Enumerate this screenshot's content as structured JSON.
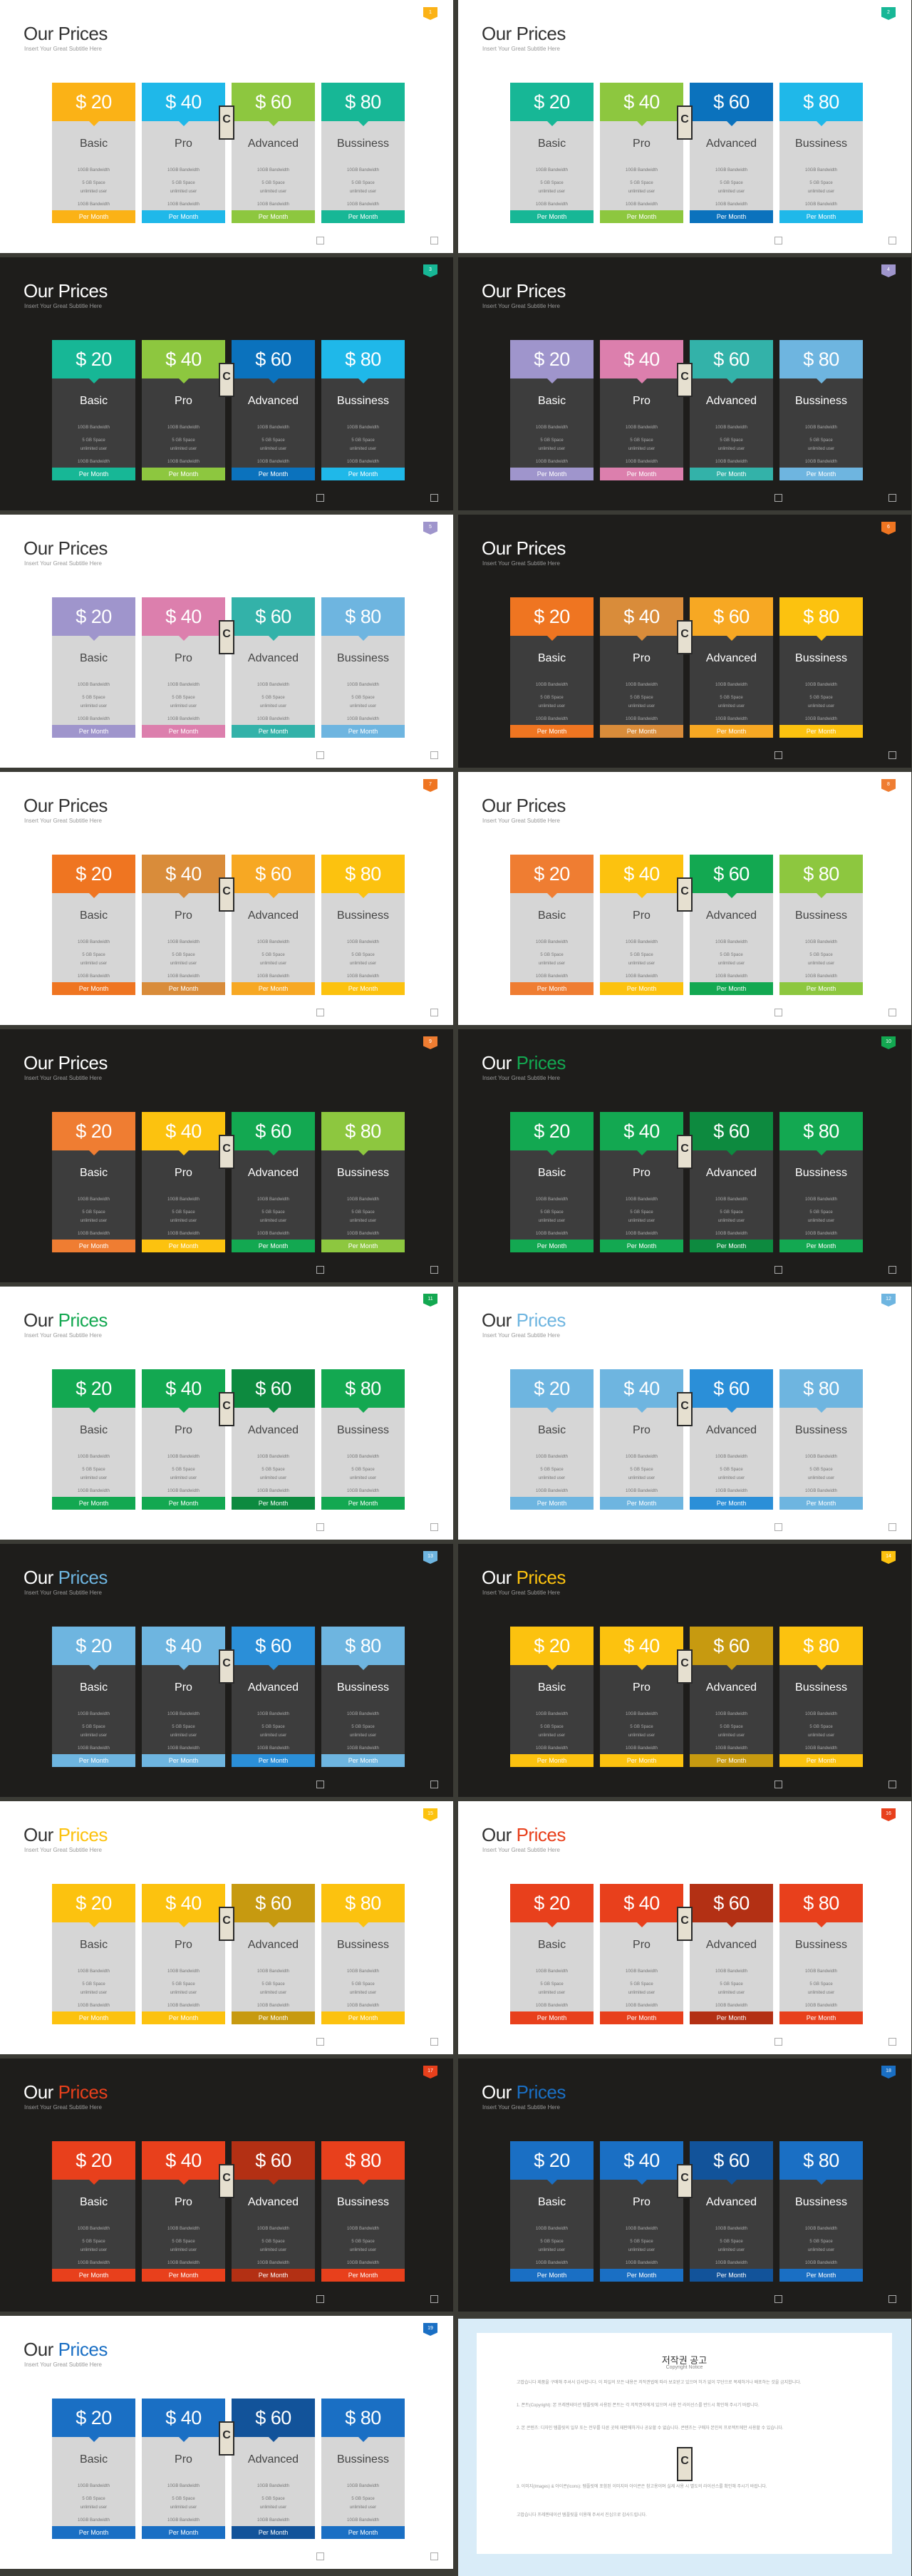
{
  "slides": [
    {
      "theme": "light",
      "title_main": "Our",
      "title_accent": "Prices",
      "accent": "#333333",
      "subtitle": "Insert Your Great Subtitle Here",
      "num": "1",
      "colors": [
        "#fbb216",
        "#1fb8e9",
        "#8dc73f",
        "#17b796"
      ]
    },
    {
      "theme": "light",
      "title_main": "Our",
      "title_accent": "Prices",
      "accent": "#333333",
      "subtitle": "Insert Your Great Subtitle Here",
      "num": "2",
      "colors": [
        "#17b796",
        "#8dc73f",
        "#0b72bd",
        "#1fb8e9"
      ]
    },
    {
      "theme": "dark",
      "title_main": "Our",
      "title_accent": "Prices",
      "accent": "#ffffff",
      "subtitle": "Insert Your Great Subtitle Here",
      "num": "3",
      "colors": [
        "#17b796",
        "#8dc73f",
        "#0b72bd",
        "#1fb8e9"
      ]
    },
    {
      "theme": "dark",
      "title_main": "Our",
      "title_accent": "Prices",
      "accent": "#ffffff",
      "subtitle": "Insert Your Great Subtitle Here",
      "num": "4",
      "colors": [
        "#9f95cc",
        "#dc7fad",
        "#33b2a9",
        "#6eb5e0"
      ]
    },
    {
      "theme": "light",
      "title_main": "Our",
      "title_accent": "Prices",
      "accent": "#333333",
      "subtitle": "Insert Your Great Subtitle Here",
      "num": "5",
      "colors": [
        "#9f95cc",
        "#dc7fad",
        "#33b2a9",
        "#6eb5e0"
      ]
    },
    {
      "theme": "dark",
      "title_main": "Our",
      "title_accent": "Prices",
      "accent": "#ffffff",
      "subtitle": "Insert Your Great Subtitle Here",
      "num": "6",
      "colors": [
        "#ef7521",
        "#d98c3a",
        "#f7a823",
        "#fcc20f"
      ]
    },
    {
      "theme": "light",
      "title_main": "Our",
      "title_accent": "Prices",
      "accent": "#333333",
      "subtitle": "Insert Your Great Subtitle Here",
      "num": "7",
      "colors": [
        "#ef7521",
        "#d98c3a",
        "#f7a823",
        "#fcc20f"
      ]
    },
    {
      "theme": "light",
      "title_main": "Our",
      "title_accent": "Prices",
      "accent": "#333333",
      "subtitle": "Insert Your Great Subtitle Here",
      "num": "8",
      "colors": [
        "#ef7d32",
        "#fcc20f",
        "#13a851",
        "#8dc73f"
      ]
    },
    {
      "theme": "dark",
      "title_main": "Our",
      "title_accent": "Prices",
      "accent": "#ffffff",
      "subtitle": "Insert Your Great Subtitle Here",
      "num": "9",
      "colors": [
        "#ef7d32",
        "#fcc20f",
        "#13a851",
        "#8dc73f"
      ]
    },
    {
      "theme": "dark",
      "title_main": "Our",
      "title_accent": "Prices",
      "accent": "#13a851",
      "subtitle": "Insert Your Great Subtitle Here",
      "num": "10",
      "colors": [
        "#13a851",
        "#13a851",
        "#0d8a3f",
        "#13a851"
      ]
    },
    {
      "theme": "light",
      "title_main": "Our",
      "title_accent": "Prices",
      "accent": "#13a851",
      "subtitle": "Insert Your Great Subtitle Here",
      "num": "11",
      "colors": [
        "#13a851",
        "#13a851",
        "#0d8a3f",
        "#13a851"
      ]
    },
    {
      "theme": "light",
      "title_main": "Our",
      "title_accent": "Prices",
      "accent": "#6eb5e0",
      "subtitle": "Insert Your Great Subtitle Here",
      "num": "12",
      "colors": [
        "#6eb5e0",
        "#6eb5e0",
        "#2b8fd8",
        "#6eb5e0"
      ]
    },
    {
      "theme": "dark",
      "title_main": "Our",
      "title_accent": "Prices",
      "accent": "#6eb5e0",
      "subtitle": "Insert Your Great Subtitle Here",
      "num": "13",
      "colors": [
        "#6eb5e0",
        "#6eb5e0",
        "#2b8fd8",
        "#6eb5e0"
      ]
    },
    {
      "theme": "dark",
      "title_main": "Our",
      "title_accent": "Prices",
      "accent": "#fcc20f",
      "subtitle": "Insert Your Great Subtitle Here",
      "num": "14",
      "colors": [
        "#fcc20f",
        "#fcc20f",
        "#c79a10",
        "#fcc20f"
      ]
    },
    {
      "theme": "light",
      "title_main": "Our",
      "title_accent": "Prices",
      "accent": "#fcc20f",
      "subtitle": "Insert Your Great Subtitle Here",
      "num": "15",
      "colors": [
        "#fcc20f",
        "#fcc20f",
        "#c79a10",
        "#fcc20f"
      ]
    },
    {
      "theme": "light",
      "title_main": "Our",
      "title_accent": "Prices",
      "accent": "#e8401c",
      "subtitle": "Insert Your Great Subtitle Here",
      "num": "16",
      "colors": [
        "#e8401c",
        "#e8401c",
        "#b33014",
        "#e8401c"
      ]
    },
    {
      "theme": "dark",
      "title_main": "Our",
      "title_accent": "Prices",
      "accent": "#e8401c",
      "subtitle": "Insert Your Great Subtitle Here",
      "num": "17",
      "colors": [
        "#e8401c",
        "#e8401c",
        "#b33014",
        "#e8401c"
      ]
    },
    {
      "theme": "dark",
      "title_main": "Our",
      "title_accent": "Prices",
      "accent": "#1a6fc4",
      "subtitle": "Insert Your Great Subtitle Here",
      "num": "18",
      "colors": [
        "#1a6fc4",
        "#1a6fc4",
        "#12539a",
        "#1a6fc4"
      ]
    },
    {
      "theme": "light",
      "title_main": "Our",
      "title_accent": "Prices",
      "accent": "#1a6fc4",
      "subtitle": "Insert Your Great Subtitle Here",
      "num": "19",
      "colors": [
        "#1a6fc4",
        "#1a6fc4",
        "#12539a",
        "#1a6fc4"
      ]
    }
  ],
  "plans": [
    {
      "price": "$ 20",
      "name": "Basic"
    },
    {
      "price": "$ 40",
      "name": "Pro"
    },
    {
      "price": "$ 60",
      "name": "Advanced"
    },
    {
      "price": "$ 80",
      "name": "Bussiness"
    }
  ],
  "features": [
    "10GB Bandwidth",
    "5 GB Space",
    "unlimited user",
    "10GB Bandwidth"
  ],
  "footer_label": "Per Month",
  "logo_letter": "C",
  "notice": {
    "title": "저작권 공고",
    "subtitle": "Copyright Notice",
    "intro": "고맙습니다 제품을 구매해 주셔서 감사합니다. 이 파일의 모든 내용은 저작권법에 따라 보호받고 있으며 허가 없이 무단으로 복제하거나 배포하는 것을 금지합니다.",
    "p1": "1. 폰트(Copyright): 본 프레젠테이션 템플릿에 사용된 폰트는 각 저작권자에게 있으며 사용 전 라이선스를 반드시 확인해 주시기 바랍니다.",
    "p2": "2. 본 콘텐츠: 디자인 템플릿의 일부 또는 전부를 다른 곳에 재판매하거나 공유할 수 없습니다. 콘텐츠는 구매자 본인의 프로젝트에만 사용할 수 있습니다.",
    "p3": "3. 이미지(Images) & 아이콘(Icons): 템플릿에 포함된 이미지와 아이콘은 참고용이며 실제 사용 시 별도의 라이선스를 확인해 주시기 바랍니다.",
    "outro": "고맙습니다 프레젠테이션 템플릿을 이용해 주셔서 진심으로 감사드립니다."
  }
}
